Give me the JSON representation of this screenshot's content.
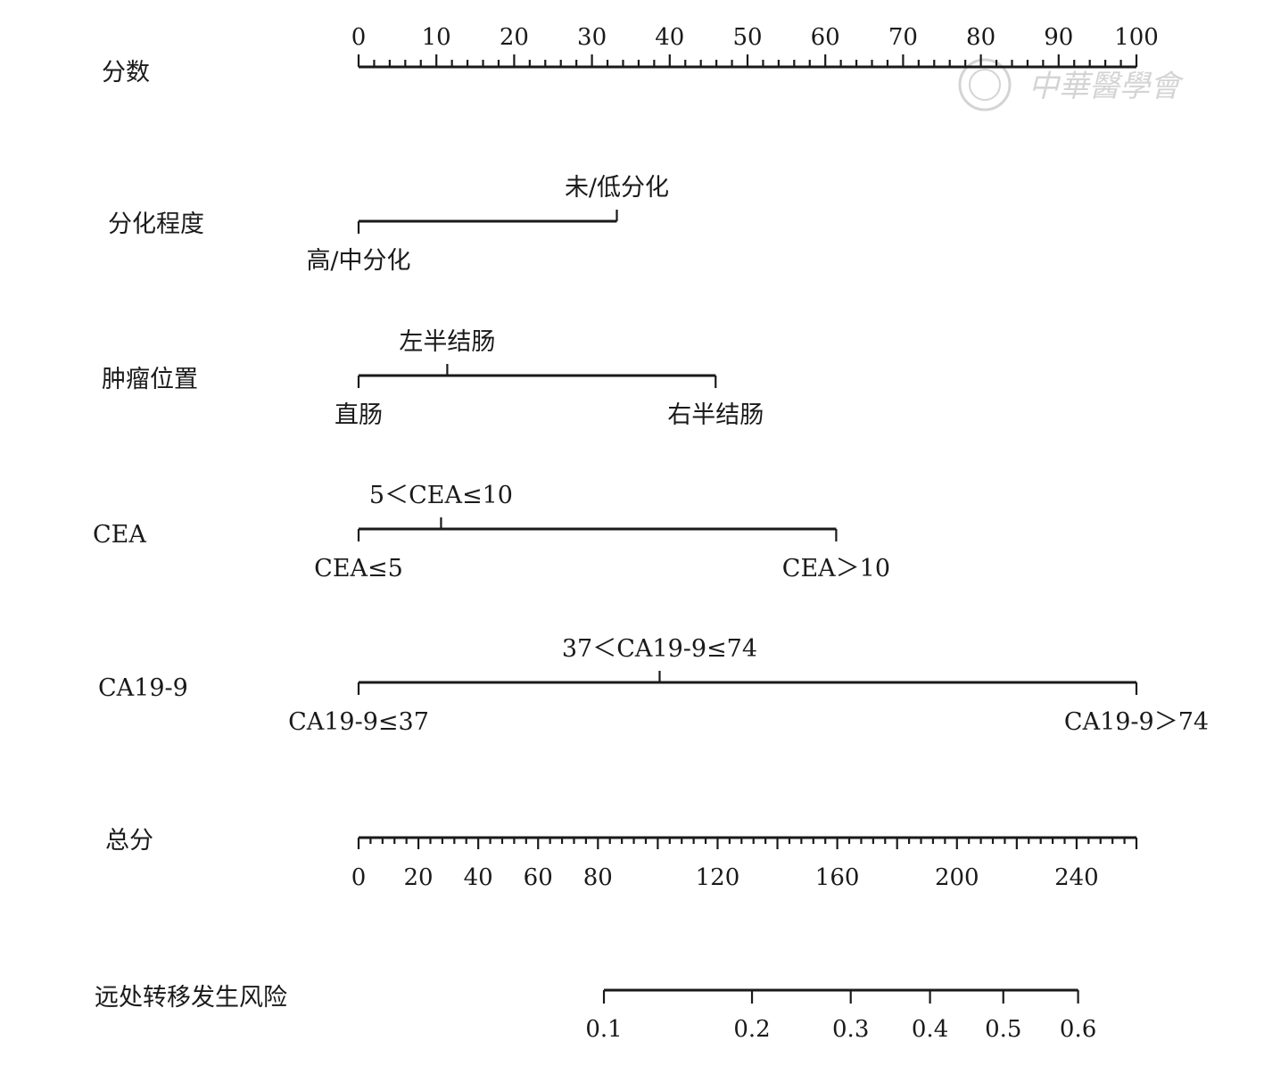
{
  "chart_data": {
    "type": "nomogram",
    "points_axis": {
      "label": "分数",
      "min": 0,
      "max": 100,
      "tick_labels": [
        "0",
        "10",
        "20",
        "30",
        "40",
        "50",
        "60",
        "70",
        "80",
        "90",
        "100"
      ]
    },
    "variables": [
      {
        "id": "differentiation",
        "label": "分化程度",
        "categories": [
          {
            "name": "高/中分化",
            "points": 0,
            "label_side": "below"
          },
          {
            "name": "未/低分化",
            "points": 33.2,
            "label_side": "above"
          }
        ]
      },
      {
        "id": "tumor-location",
        "label": "肿瘤位置",
        "categories": [
          {
            "name": "直肠",
            "points": 0,
            "label_side": "below"
          },
          {
            "name": "左半结肠",
            "points": 11.4,
            "label_side": "above"
          },
          {
            "name": "右半结肠",
            "points": 45.9,
            "label_side": "below"
          }
        ]
      },
      {
        "id": "cea",
        "label": "CEA",
        "categories": [
          {
            "name": "CEA≤5",
            "points": 0,
            "label_side": "below"
          },
          {
            "name": "5＜CEA≤10",
            "points": 10.6,
            "label_side": "above"
          },
          {
            "name": "CEA＞10",
            "points": 61.4,
            "label_side": "below"
          }
        ]
      },
      {
        "id": "ca199",
        "label": "CA19-9",
        "categories": [
          {
            "name": "CA19-9≤37",
            "points": 0,
            "label_side": "below"
          },
          {
            "name": "37＜CA19-9≤74",
            "points": 38.7,
            "label_side": "above"
          },
          {
            "name": "CA19-9＞74",
            "points": 100,
            "label_side": "below"
          }
        ]
      }
    ],
    "total_points_axis": {
      "label": "总分",
      "min": 0,
      "max": 260,
      "tick_values": [
        0,
        20,
        40,
        60,
        80,
        120,
        160,
        200,
        240
      ],
      "tick_labels": [
        "0",
        "20",
        "40",
        "60",
        "80",
        "120",
        "160",
        "200",
        "240"
      ]
    },
    "risk_axis": {
      "label": "远处转移发生风险",
      "values": [
        0.1,
        0.2,
        0.3,
        0.4,
        0.5,
        0.6
      ],
      "tick_labels": [
        "0.1",
        "0.2",
        "0.3",
        "0.4",
        "0.5",
        "0.6"
      ],
      "total_points_at": [
        82,
        131.5,
        164.5,
        191,
        215.5,
        240.5
      ]
    },
    "watermark": "中華醫學會"
  }
}
